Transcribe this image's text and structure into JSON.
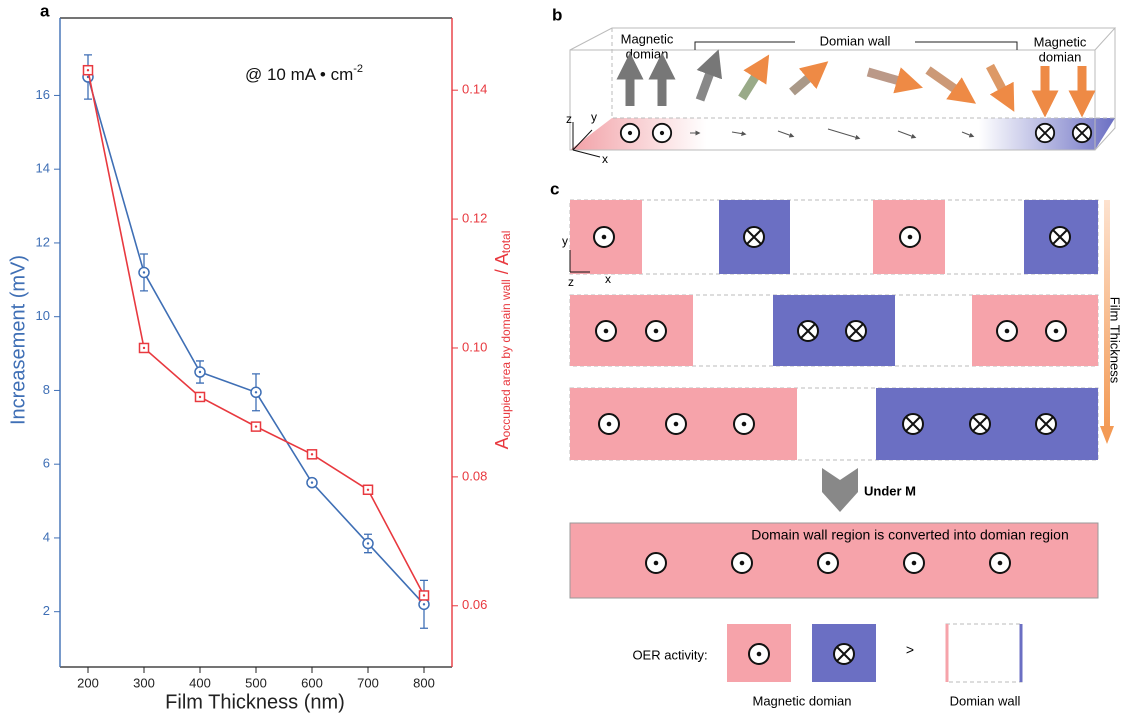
{
  "chart_data": {
    "type": "line",
    "xlabel": "Film Thickness (nm)",
    "ylabel": "Increasement (mV)",
    "y2label": {
      "main": "A",
      "sub": "occupied area by domain wall",
      "main2": " / A",
      "sub2": "total"
    },
    "annotation": {
      "text": "@ 10 mA • cm",
      "sup": "-2"
    },
    "x": [
      200,
      300,
      400,
      500,
      600,
      700,
      800
    ],
    "series": [
      {
        "color": "#3f6fb5",
        "values": [
          16.5,
          11.2,
          8.5,
          7.95,
          5.5,
          3.85,
          2.2
        ],
        "errors": [
          0.6,
          0.5,
          0.3,
          0.5,
          0.1,
          0.25,
          0.65
        ]
      },
      {
        "color": "#e8393f",
        "axis": "y2",
        "values": [
          0.1431,
          0.1,
          0.0924,
          0.0878,
          0.0835,
          0.078,
          0.0616
        ]
      }
    ],
    "xlim": [
      150,
      850
    ],
    "xticks": [
      200,
      300,
      400,
      500,
      600,
      700,
      800
    ],
    "ylim": [
      0.5,
      18.1
    ],
    "yticks": [
      2,
      4,
      6,
      8,
      10,
      12,
      14,
      16
    ],
    "y2lim": [
      0.0505,
      0.1512
    ],
    "y2ticks": [
      0.06,
      0.08,
      {
        "value": 0.1,
        "label": "0.10"
      },
      0.12,
      0.14
    ]
  },
  "panel_labels": [
    "a",
    "b",
    "c"
  ],
  "panel_b": {
    "left_label": [
      "Magnetic",
      "domian"
    ],
    "wall_label": "Domian wall",
    "right_label": [
      "Magnetic",
      "domian"
    ],
    "axes": [
      "z",
      "y",
      "x"
    ]
  },
  "panel_c": {
    "axes": [
      "y",
      "z",
      "x"
    ],
    "thickness_label": "Film Thickness",
    "under_m": "Under M",
    "converted": "Domain wall region is converted into domian region",
    "oer": "OER activity:",
    "gt": ">",
    "legend": [
      "Magnetic domian",
      "Domian wall"
    ]
  }
}
